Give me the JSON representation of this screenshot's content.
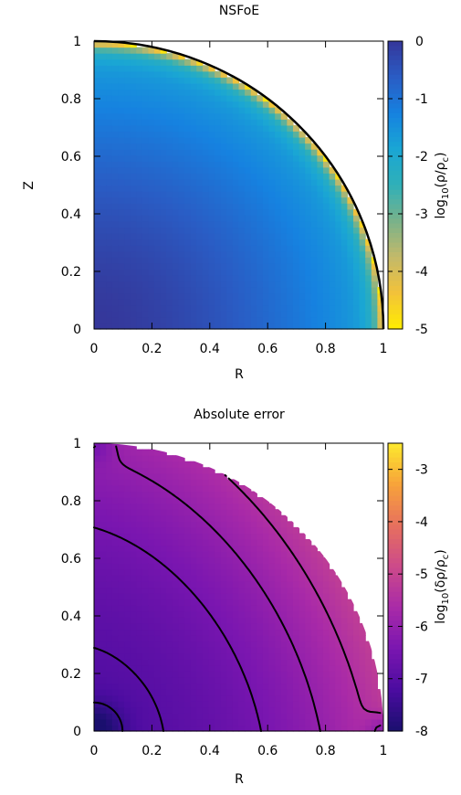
{
  "chart_data": [
    {
      "type": "heatmap",
      "title": "NSFoE",
      "xlabel": "R",
      "ylabel": "Z",
      "xlim": [
        0,
        1
      ],
      "ylim": [
        0,
        1
      ],
      "xticks": [
        "0",
        "0.2",
        "0.4",
        "0.6",
        "0.8",
        "1"
      ],
      "yticks": [
        "0",
        "0.2",
        "0.4",
        "0.6",
        "0.8",
        "1"
      ],
      "colorbar": {
        "label_base": "log",
        "label_sub": "10",
        "label_arg": "(ρ/ρ",
        "label_argsub": "c",
        "label_close": ")",
        "range": [
          -5,
          0
        ],
        "ticks": [
          "0",
          "-1",
          "-2",
          "-3",
          "-4",
          "-5"
        ],
        "colormap": [
          "#ffee00",
          "#f2c23a",
          "#c3b96a",
          "#79b28a",
          "#2fb0b8",
          "#1aa6d4",
          "#1682e0",
          "#2a5cc4",
          "#35379a"
        ]
      },
      "field": "log density; ~0 at centre, decreasing to -5 at the surface r=1",
      "boundary": "unit quarter circle"
    },
    {
      "type": "heatmap",
      "title": "Absolute error",
      "xlabel": "R",
      "ylabel": "",
      "xlim": [
        0,
        1
      ],
      "ylim": [
        0,
        1
      ],
      "xticks": [
        "0",
        "0.2",
        "0.4",
        "0.6",
        "0.8",
        "1"
      ],
      "yticks": [
        "0",
        "0.2",
        "0.4",
        "0.6",
        "0.8",
        "1"
      ],
      "colorbar": {
        "label_base": "log",
        "label_sub": "10",
        "label_arg": "(δρ/ρ",
        "label_argsub": "c",
        "label_close": ")",
        "range": [
          -8,
          -2.5
        ],
        "ticks": [
          "-3",
          "-4",
          "-5",
          "-6",
          "-7",
          "-8"
        ],
        "colormap": [
          "#1a0f6e",
          "#4b0ca0",
          "#7a16b0",
          "#a92aa8",
          "#cc4a8a",
          "#e7705e",
          "#f7a33a",
          "#fde92e"
        ]
      },
      "contour_levels": [
        -7.5,
        -7,
        -6.5,
        -6,
        -5.5,
        -5
      ],
      "boundary": "unit quarter circle"
    }
  ]
}
